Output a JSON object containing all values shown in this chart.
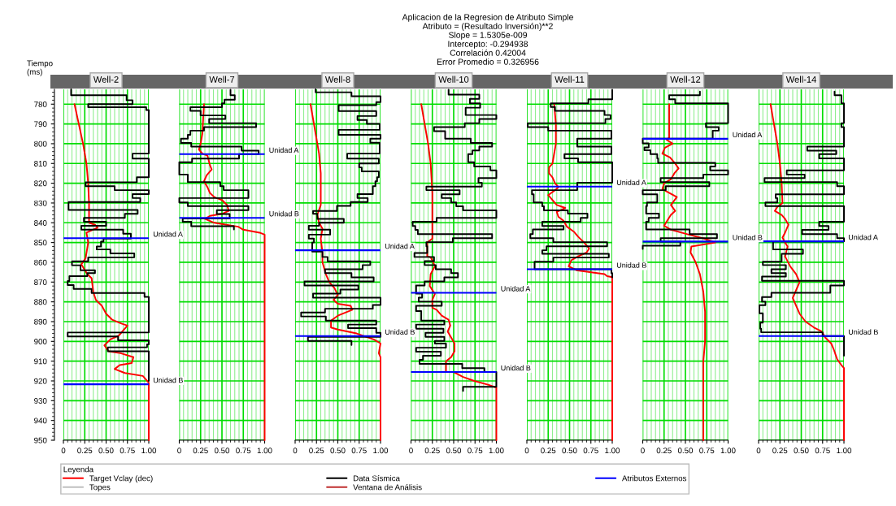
{
  "chart_data": [
    {
      "type": "line",
      "title": "Well-2",
      "ylabel": "Tiempo\n(ms)",
      "legend": "bottom",
      "legend_title": "Leyenda",
      "annotations": [
        "Aplicacion de la Regresion de Atributo Simple",
        "Atributo = (Resultado Inversión)**2",
        "Slope = 1.5305e-009",
        "Intercepto: -0.294938",
        "Correlación 0.42004",
        "Error Promedio = 0.326956"
      ],
      "xlim": [
        0,
        1
      ],
      "xticks": [
        0,
        {
          "value": 0.05,
          "label": null
        },
        {
          "value": 0.1,
          "label": null
        },
        {
          "value": 0.15,
          "label": null
        },
        {
          "value": 0.2,
          "label": null
        },
        0.25,
        {
          "value": 0.3,
          "label": null
        },
        {
          "value": 0.35,
          "label": null
        },
        {
          "value": 0.4,
          "label": null
        },
        {
          "value": 0.45,
          "label": null
        },
        {
          "value": 0.5,
          "label": "0.50"
        },
        {
          "value": 0.55,
          "label": null
        },
        {
          "value": 0.6,
          "label": null
        },
        {
          "value": 0.65,
          "label": null
        },
        {
          "value": 0.7,
          "label": null
        },
        0.75,
        {
          "value": 0.8,
          "label": null
        },
        {
          "value": 0.85,
          "label": null
        },
        {
          "value": 0.9,
          "label": null
        },
        {
          "value": 0.95,
          "label": null
        },
        {
          "value": 1,
          "label": "1.00"
        }
      ],
      "ylim": [
        950,
        772.5
      ],
      "yticks": [
        780,
        790,
        800,
        810,
        820,
        830,
        840,
        850,
        860,
        870,
        880,
        890,
        900,
        910,
        920,
        930,
        940,
        950
      ],
      "grid": true,
      "series": [
        {
          "name": "Target Vclay (dec)",
          "type": "line",
          "color": "#ff0000",
          "x": [
            0.13,
            0.18,
            0.23,
            0.27,
            0.29,
            0.3,
            0.3,
            0.37,
            0.4,
            0.27,
            0.29,
            0.26,
            0.21,
            0.28,
            0.33,
            0.35,
            0.38,
            0.45,
            0.5,
            0.57,
            0.68,
            0.75,
            0.65,
            0.55,
            0.48,
            0.53,
            0.67,
            0.82,
            0.8,
            0.66,
            0.6,
            0.72,
            0.93,
            0.98,
            1.0,
            1.0
          ],
          "values": [
            780,
            790,
            800,
            810,
            820,
            830,
            840,
            841,
            842.5,
            845,
            850,
            858,
            861,
            866,
            868,
            875,
            879,
            882,
            886,
            889,
            891,
            892,
            897,
            899,
            902,
            905,
            906,
            908,
            911,
            912,
            914,
            916,
            917.5,
            920,
            921,
            950
          ]
        },
        {
          "name": "Topes",
          "type": "line",
          "color": "#c0c0c0"
        },
        {
          "name": "Data Sísmica",
          "type": "step",
          "color": "#000000",
          "x": [
            0.09,
            0.74,
            0.81,
            0.29,
            0.97,
            1.0,
            0.81,
            1.0,
            0.86,
            0.26,
            0.6,
            1.0,
            0.81,
            0.9,
            0.06,
            0.87,
            0.72,
            0.24,
            0.5,
            0.21,
            0.7,
            0.79,
            0.47,
            0.44,
            0.39,
            0.55,
            0.83,
            0.29,
            0.1,
            0.2,
            0.37,
            0.28,
            0.07,
            0.05,
            0.12,
            0.33,
            0.95,
            1.0,
            0.05,
            0.64,
            1.0,
            0.98,
            0.52,
            1.0,
            1.0
          ],
          "values": [
            772.5,
            775.5,
            778,
            780,
            781.5,
            783,
            805,
            807.5,
            817,
            819.5,
            821.5,
            823.5,
            825.5,
            827.5,
            829.5,
            833.5,
            835.5,
            837.5,
            839.5,
            841.5,
            843.5,
            845.5,
            848,
            849.5,
            852,
            853.5,
            855.5,
            857.5,
            859.5,
            861.5,
            864,
            865.5,
            867,
            869.5,
            871.5,
            873.5,
            875.5,
            877.5,
            895.5,
            897.5,
            899.5,
            901.5,
            903,
            905,
            920
          ]
        },
        {
          "name": "Ventana de Análisis",
          "type": "line",
          "color": "#c03030"
        },
        {
          "name": "Atributos Externos",
          "type": "line",
          "color": "#0000ff"
        }
      ],
      "ref_lines": [
        {
          "axis": "y",
          "value": 847.8,
          "label": "Unidad A",
          "color": "#0000ff"
        },
        {
          "axis": "y",
          "value": 921.7,
          "label": "Unidad B",
          "color": "#0000ff"
        }
      ]
    },
    {
      "type": "line",
      "title": "Well-7",
      "tick_labels": "x",
      "xlim": [
        0,
        1
      ],
      "xticks": [
        0,
        {
          "value": 0.05,
          "label": null
        },
        {
          "value": 0.1,
          "label": null
        },
        {
          "value": 0.15,
          "label": null
        },
        {
          "value": 0.2,
          "label": null
        },
        0.25,
        {
          "value": 0.3,
          "label": null
        },
        {
          "value": 0.35,
          "label": null
        },
        {
          "value": 0.4,
          "label": null
        },
        {
          "value": 0.45,
          "label": null
        },
        {
          "value": 0.5,
          "label": "0.50"
        },
        {
          "value": 0.55,
          "label": null
        },
        {
          "value": 0.6,
          "label": null
        },
        {
          "value": 0.65,
          "label": null
        },
        {
          "value": 0.7,
          "label": null
        },
        0.75,
        {
          "value": 0.8,
          "label": null
        },
        {
          "value": 0.85,
          "label": null
        },
        {
          "value": 0.9,
          "label": null
        },
        {
          "value": 0.95,
          "label": null
        },
        {
          "value": 1,
          "label": "1.00"
        }
      ],
      "ylim": [
        950,
        772.5
      ],
      "yticks": [
        780,
        790,
        800,
        810,
        820,
        830,
        840,
        850,
        860,
        870,
        880,
        890,
        900,
        910,
        920,
        930,
        940,
        950
      ],
      "grid": true,
      "series": [
        {
          "type": "line",
          "color": "#ff0000",
          "x": [
            0.29,
            0.27,
            0.25,
            0.23,
            0.27,
            0.33,
            0.36,
            0.38,
            0.32,
            0.29,
            0.33,
            0.36,
            0.41,
            0.5,
            0.56,
            0.58,
            0.5,
            0.36,
            0.3,
            0.41,
            0.69,
            0.75,
            0.94,
            1.0,
            1.0
          ],
          "values": [
            780,
            795,
            800,
            803,
            805,
            806,
            811,
            813,
            816,
            819,
            822,
            825,
            827,
            828.5,
            831,
            834,
            835.5,
            836.5,
            838,
            840,
            842,
            843.5,
            845,
            846,
            950
          ]
        },
        {
          "type": "step",
          "color": "#000000",
          "x": [
            0.6,
            0.65,
            0.53,
            0.5,
            0.13,
            0.25,
            0.54,
            0.35,
            0.9,
            0.29,
            0.13,
            0.1,
            0.02,
            0.14,
            0.73,
            0.93,
            0.7,
            0.15,
            0.0,
            0.1,
            0.48,
            0.52,
            0.81,
            0.0,
            0.1,
            0.81,
            0.44,
            0.59,
            0.04,
            0.14,
            0.64,
            0.64
          ],
          "values": [
            772.7,
            775.5,
            777.7,
            779.6,
            781.5,
            783.4,
            785.7,
            787.5,
            789.6,
            791.6,
            793.4,
            795.5,
            797.5,
            799.6,
            801.5,
            803.5,
            805.3,
            807.5,
            809.4,
            815.6,
            819.4,
            821.5,
            823.5,
            827.5,
            829.7,
            831.6,
            833.6,
            835.6,
            837.8,
            839.5,
            841.7,
            843.4
          ]
        }
      ],
      "ref_lines": [
        {
          "axis": "y",
          "value": 805.3,
          "label": "Unidad A",
          "color": "#0000ff"
        },
        {
          "axis": "y",
          "value": 837.5,
          "label": "Unidad B",
          "color": "#0000ff"
        }
      ]
    },
    {
      "type": "line",
      "title": "Well-8",
      "tick_labels": "x",
      "xlim": [
        0,
        1
      ],
      "xticks": [
        0,
        {
          "value": 0.05,
          "label": null
        },
        {
          "value": 0.1,
          "label": null
        },
        {
          "value": 0.15,
          "label": null
        },
        {
          "value": 0.2,
          "label": null
        },
        0.25,
        {
          "value": 0.3,
          "label": null
        },
        {
          "value": 0.35,
          "label": null
        },
        {
          "value": 0.4,
          "label": null
        },
        {
          "value": 0.45,
          "label": null
        },
        {
          "value": 0.5,
          "label": "0.50"
        },
        {
          "value": 0.55,
          "label": null
        },
        {
          "value": 0.6,
          "label": null
        },
        {
          "value": 0.65,
          "label": null
        },
        {
          "value": 0.7,
          "label": null
        },
        0.75,
        {
          "value": 0.8,
          "label": null
        },
        {
          "value": 0.85,
          "label": null
        },
        {
          "value": 0.9,
          "label": null
        },
        {
          "value": 0.95,
          "label": null
        },
        {
          "value": 1,
          "label": "1.00"
        }
      ],
      "ylim": [
        950,
        772.5
      ],
      "yticks": [
        780,
        790,
        800,
        810,
        820,
        830,
        840,
        850,
        860,
        870,
        880,
        890,
        900,
        910,
        920,
        930,
        940,
        950
      ],
      "grid": true,
      "series": [
        {
          "type": "line",
          "color": "#ff0000",
          "x": [
            0.18,
            0.28,
            0.3,
            0.3,
            0.26,
            0.28,
            0.32,
            0.3,
            0.32,
            0.32,
            0.36,
            0.4,
            0.46,
            0.5,
            0.45,
            0.5,
            0.65,
            0.67,
            0.5,
            0.42,
            0.42,
            0.5,
            0.72,
            0.92,
            1.0,
            0.98,
            1.0,
            1.0
          ],
          "values": [
            780,
            805,
            815,
            831,
            836,
            840,
            843,
            848,
            855,
            860,
            866,
            870,
            873,
            876.5,
            879,
            881,
            882,
            884,
            887,
            889.5,
            893,
            894,
            896,
            899,
            901,
            906,
            908,
            950
          ]
        },
        {
          "type": "step",
          "color": "#000000",
          "x": [
            0.24,
            0.66,
            1.0,
            0.95,
            0.51,
            0.95,
            0.73,
            0.84,
            0.99,
            0.51,
            1.0,
            0.88,
            0.99,
            0.61,
            0.98,
            0.75,
            0.78,
            0.98,
            0.96,
            0.94,
            0.91,
            0.73,
            0.85,
            0.65,
            0.49,
            0.21,
            0.26,
            0.57,
            0.28,
            0.16,
            0.41,
            0.16,
            0.22,
            0.2,
            0.32,
            0.38,
            0.88,
            0.79,
            0.35,
            0.66,
            0.92,
            0.11,
            0.74,
            0.53,
            0.21,
            1.0,
            0.91,
            0.35,
            0.07,
            0.36,
            0.95,
            0.62,
            0.95,
            1.0,
            0.15,
            0.66,
            0.66
          ],
          "values": [
            772.5,
            774,
            776,
            779,
            780.5,
            783.5,
            786,
            788,
            790,
            793,
            795.5,
            797.5,
            799.5,
            805,
            807.5,
            810,
            812,
            814,
            817,
            819,
            821.5,
            825.5,
            827.5,
            829.5,
            831.5,
            834,
            835.5,
            838,
            840,
            841.5,
            843.5,
            846,
            848,
            850,
            854.6,
            857.3,
            859.5,
            861.4,
            863.5,
            865.5,
            867.6,
            869.7,
            871.7,
            873.8,
            875.8,
            877.9,
            881.6,
            883.5,
            885.4,
            887.4,
            889.5,
            891.5,
            893.3,
            895.7,
            897.7,
            899.8,
            901.8
          ]
        }
      ],
      "ref_lines": [
        {
          "axis": "y",
          "value": 853.9,
          "label": "Unidad A",
          "color": "#0000ff"
        },
        {
          "axis": "y",
          "value": 897.3,
          "label": "Unidad B",
          "color": "#0000ff"
        }
      ]
    },
    {
      "type": "line",
      "title": "Well-10",
      "tick_labels": "x",
      "xlim": [
        0,
        1
      ],
      "xticks": [
        0,
        {
          "value": 0.05,
          "label": null
        },
        {
          "value": 0.1,
          "label": null
        },
        {
          "value": 0.15,
          "label": null
        },
        {
          "value": 0.2,
          "label": null
        },
        0.25,
        {
          "value": 0.3,
          "label": null
        },
        {
          "value": 0.35,
          "label": null
        },
        {
          "value": 0.4,
          "label": null
        },
        {
          "value": 0.45,
          "label": null
        },
        {
          "value": 0.5,
          "label": "0.50"
        },
        {
          "value": 0.55,
          "label": null
        },
        {
          "value": 0.6,
          "label": null
        },
        {
          "value": 0.65,
          "label": null
        },
        {
          "value": 0.7,
          "label": null
        },
        0.75,
        {
          "value": 0.8,
          "label": null
        },
        {
          "value": 0.85,
          "label": null
        },
        {
          "value": 0.9,
          "label": null
        },
        {
          "value": 0.95,
          "label": null
        },
        {
          "value": 1,
          "label": "1.00"
        }
      ],
      "ylim": [
        950,
        772.5
      ],
      "yticks": [
        780,
        790,
        800,
        810,
        820,
        830,
        840,
        850,
        860,
        870,
        880,
        890,
        900,
        910,
        920,
        930,
        940,
        950
      ],
      "grid": true,
      "series": [
        {
          "type": "line",
          "color": "#ff0000",
          "x": [
            0.12,
            0.2,
            0.23,
            0.25,
            0.25,
            0.19,
            0.19,
            0.23,
            0.25,
            0.28,
            0.23,
            0.22,
            0.28,
            0.25,
            0.25,
            0.3,
            0.36,
            0.44,
            0.46,
            0.43,
            0.47,
            0.51,
            0.51,
            0.47,
            0.41,
            0.41,
            0.5,
            0.61,
            0.74,
            0.91,
            1.0,
            1.0
          ],
          "values": [
            780,
            800,
            810,
            825,
            848,
            850,
            857,
            857.5,
            859,
            862,
            866,
            872,
            876,
            879,
            883,
            884,
            887,
            889,
            892,
            895,
            898,
            901,
            905,
            908,
            910,
            915.5,
            915.5,
            918,
            920,
            922,
            923.4,
            950
          ]
        },
        {
          "type": "step",
          "color": "#000000",
          "x": [
            0.44,
            0.8,
            0.69,
            0.81,
            0.64,
            1.0,
            0.8,
            0.63,
            0.27,
            0.4,
            0.7,
            0.95,
            0.8,
            0.72,
            0.67,
            0.74,
            0.93,
            1.0,
            0.79,
            0.83,
            0.18,
            0.57,
            0.36,
            0.47,
            0.53,
            0.61,
            1.0,
            0.3,
            0.02,
            0.05,
            0.08,
            0.95,
            0.49,
            0.18,
            0.19,
            0.04,
            0.27,
            0.16,
            0.29,
            0.47,
            0.55,
            0.39,
            0.16,
            0.06,
            0.13,
            0.09,
            0.36,
            0.06,
            0.12,
            0.39,
            0.06,
            0.38,
            0.17,
            0.39,
            0.28,
            0.41,
            0.06,
            0.35,
            0.14,
            0.1,
            0.6,
            0.86,
            1.0,
            0.61,
            0.61
          ],
          "values": [
            772.7,
            775.2,
            777.3,
            779.6,
            781.8,
            785.5,
            787.5,
            789.6,
            791.6,
            793.7,
            797.5,
            799.6,
            801.5,
            803.4,
            805.3,
            809.4,
            811.5,
            813.5,
            817.4,
            819.7,
            821.7,
            823.5,
            825.6,
            827.5,
            829.7,
            831.7,
            833.7,
            837.5,
            839.5,
            841.6,
            843.6,
            845.7,
            847.8,
            849.8,
            851.9,
            855.3,
            857.3,
            859.4,
            861.4,
            863.5,
            865.5,
            867.6,
            869.7,
            871.7,
            875.8,
            877.9,
            879.9,
            882.0,
            884.7,
            889.5,
            891.5,
            893.6,
            895.7,
            897.7,
            899.8,
            901.1,
            903.2,
            905.2,
            907.3,
            909.3,
            911.4,
            913.5,
            915.5,
            923.0,
            925.1
          ]
        }
      ],
      "ref_lines": [
        {
          "axis": "y",
          "value": 875.4,
          "label": "Unidad A",
          "color": "#0000ff"
        },
        {
          "axis": "y",
          "value": 915.5,
          "label": "Unidad B",
          "color": "#0000ff"
        }
      ]
    },
    {
      "type": "line",
      "title": "Well-11",
      "tick_labels": "x",
      "xlim": [
        0,
        1
      ],
      "xticks": [
        0,
        {
          "value": 0.05,
          "label": null
        },
        {
          "value": 0.1,
          "label": null
        },
        {
          "value": 0.15,
          "label": null
        },
        {
          "value": 0.2,
          "label": null
        },
        0.25,
        {
          "value": 0.3,
          "label": null
        },
        {
          "value": 0.35,
          "label": null
        },
        {
          "value": 0.4,
          "label": null
        },
        {
          "value": 0.45,
          "label": null
        },
        {
          "value": 0.5,
          "label": "0.50"
        },
        {
          "value": 0.55,
          "label": null
        },
        {
          "value": 0.6,
          "label": null
        },
        {
          "value": 0.65,
          "label": null
        },
        {
          "value": 0.7,
          "label": null
        },
        0.75,
        {
          "value": 0.8,
          "label": null
        },
        {
          "value": 0.85,
          "label": null
        },
        {
          "value": 0.9,
          "label": null
        },
        {
          "value": 0.95,
          "label": null
        },
        {
          "value": 1,
          "label": "1.00"
        }
      ],
      "ylim": [
        950,
        772.5
      ],
      "yticks": [
        780,
        790,
        800,
        810,
        820,
        830,
        840,
        850,
        860,
        870,
        880,
        890,
        900,
        910,
        920,
        930,
        940,
        950
      ],
      "grid": true,
      "series": [
        {
          "type": "line",
          "color": "#ff0000",
          "x": [
            0.32,
            0.34,
            0.34,
            0.3,
            0.26,
            0.26,
            0.3,
            0.33,
            0.37,
            0.33,
            0.25,
            0.27,
            0.35,
            0.45,
            0.35,
            0.37,
            0.43,
            0.47,
            0.55,
            0.6,
            0.67,
            0.73,
            0.7,
            0.6,
            0.52,
            0.49,
            0.58,
            0.91,
            0.94,
            1.0,
            1.0
          ],
          "values": [
            780,
            790,
            800,
            810,
            812,
            815,
            817,
            820,
            822,
            823.5,
            826,
            827,
            831,
            832.5,
            834.5,
            837,
            839,
            842,
            844.5,
            847,
            850,
            853,
            855,
            857,
            859,
            862,
            864,
            866,
            867,
            867.5,
            950
          ]
        },
        {
          "type": "step",
          "color": "#000000",
          "x": [
            1.0,
            0.72,
            0.28,
            0.33,
            0.91,
            0.98,
            0.92,
            0.01,
            0.25,
            0.99,
            0.59,
            0.99,
            0.44,
            0.6,
            1.0,
            0.59,
            0.06,
            0.08,
            0.18,
            0.2,
            0.48,
            0.71,
            0.63,
            0.18,
            0.43,
            0.07,
            0.04,
            0.31,
            0.94,
            0.23,
            0.18,
            0.96,
            0.31,
            0.09,
            0.99,
            1.0,
            1.0
          ],
          "values": [
            772.7,
            777.5,
            779.6,
            781.4,
            783.4,
            785.5,
            787.5,
            789.6,
            791.6,
            793.4,
            797.5,
            801.5,
            805.3,
            807.4,
            809.4,
            819.7,
            823.5,
            825.6,
            829.7,
            831.7,
            833.7,
            835.4,
            837.5,
            839.5,
            841.6,
            843.4,
            845.7,
            847.8,
            849.8,
            851.9,
            853.9,
            855.7,
            857.6,
            859.7,
            863.5,
            865.5,
            867.6
          ]
        }
      ],
      "ref_lines": [
        {
          "axis": "y",
          "value": 821.7,
          "label": "Unidad A",
          "color": "#0000ff"
        },
        {
          "axis": "y",
          "value": 863.5,
          "label": "Unidad B",
          "color": "#0000ff"
        }
      ]
    },
    {
      "type": "line",
      "title": "Well-12",
      "tick_labels": "x",
      "xlim": [
        0,
        1
      ],
      "xticks": [
        0,
        {
          "value": 0.05,
          "label": null
        },
        {
          "value": 0.1,
          "label": null
        },
        {
          "value": 0.15,
          "label": null
        },
        {
          "value": 0.2,
          "label": null
        },
        0.25,
        {
          "value": 0.3,
          "label": null
        },
        {
          "value": 0.35,
          "label": null
        },
        {
          "value": 0.4,
          "label": null
        },
        {
          "value": 0.45,
          "label": null
        },
        {
          "value": 0.5,
          "label": "0.50"
        },
        {
          "value": 0.55,
          "label": null
        },
        {
          "value": 0.6,
          "label": null
        },
        {
          "value": 0.65,
          "label": null
        },
        {
          "value": 0.7,
          "label": null
        },
        0.75,
        {
          "value": 0.8,
          "label": null
        },
        {
          "value": 0.85,
          "label": null
        },
        {
          "value": 0.9,
          "label": null
        },
        {
          "value": 0.95,
          "label": null
        },
        {
          "value": 1,
          "label": "1.00"
        }
      ],
      "ylim": [
        950,
        772.5
      ],
      "yticks": [
        780,
        790,
        800,
        810,
        820,
        830,
        840,
        850,
        860,
        870,
        880,
        890,
        900,
        910,
        920,
        930,
        940,
        950
      ],
      "grid": true,
      "series": [
        {
          "type": "line",
          "color": "#ff0000",
          "x": [
            0.31,
            0.31,
            0.28,
            0.35,
            0.26,
            0.23,
            0.32,
            0.38,
            0.42,
            0.37,
            0.33,
            0.25,
            0.23,
            0.4,
            0.33,
            0.38,
            0.33,
            0.3,
            0.25,
            0.33,
            0.54,
            0.72,
            0.85,
            0.57,
            0.56,
            0.62,
            0.67,
            0.71,
            0.73,
            0.73,
            0.71,
            0.71
          ],
          "values": [
            780,
            797,
            798,
            800,
            802,
            805,
            807,
            810,
            812.5,
            815,
            818,
            820,
            823,
            827,
            831,
            834,
            836,
            838,
            841.5,
            843.5,
            846,
            848,
            850,
            852,
            855,
            860,
            866,
            875,
            885,
            900,
            910,
            950
          ]
        },
        {
          "type": "step",
          "color": "#000000",
          "x": [
            0.67,
            0.31,
            0.38,
            1.0,
            0.74,
            0.89,
            0.82,
            0.0,
            0.07,
            0.02,
            0.09,
            0.17,
            0.18,
            0.85,
            0.79,
            1.0,
            0.71,
            0.21,
            0.78,
            0.27,
            0.0,
            0.17,
            0.05,
            0.04,
            0.19,
            0.07,
            0.04,
            0.55,
            0.87,
            0.21,
            0.44,
            0.0,
            0.0
          ],
          "values": [
            773.6,
            775.5,
            777.5,
            779.6,
            789.6,
            791.6,
            793.4,
            797.5,
            799.8,
            801.9,
            803.3,
            805.3,
            807.4,
            809.7,
            811.5,
            813.5,
            815.6,
            817.4,
            819.4,
            821.5,
            823.5,
            825.6,
            829.7,
            831.6,
            835.4,
            837.5,
            839.5,
            843.4,
            845.7,
            847.8,
            849.5,
            851.6,
            853.2
          ]
        }
      ],
      "ref_lines": [
        {
          "axis": "y",
          "value": 797.5,
          "label": "Unidad A",
          "color": "#0000ff"
        },
        {
          "axis": "y",
          "value": 849.5,
          "label": "Unidad B",
          "color": "#0000ff"
        }
      ]
    },
    {
      "type": "line",
      "title": "Well-14",
      "tick_labels": "x",
      "xlim": [
        0,
        1
      ],
      "xticks": [
        0,
        {
          "value": 0.05,
          "label": null
        },
        {
          "value": 0.1,
          "label": null
        },
        {
          "value": 0.15,
          "label": null
        },
        {
          "value": 0.2,
          "label": null
        },
        0.25,
        {
          "value": 0.3,
          "label": null
        },
        {
          "value": 0.35,
          "label": null
        },
        {
          "value": 0.4,
          "label": null
        },
        {
          "value": 0.45,
          "label": null
        },
        {
          "value": 0.5,
          "label": "0.50"
        },
        {
          "value": 0.55,
          "label": null
        },
        {
          "value": 0.6,
          "label": null
        },
        {
          "value": 0.65,
          "label": null
        },
        {
          "value": 0.7,
          "label": null
        },
        0.75,
        {
          "value": 0.8,
          "label": null
        },
        {
          "value": 0.85,
          "label": null
        },
        {
          "value": 0.9,
          "label": null
        },
        {
          "value": 0.95,
          "label": null
        },
        {
          "value": 1,
          "label": "1.00"
        }
      ],
      "ylim": [
        950,
        772.5
      ],
      "yticks": [
        780,
        790,
        800,
        810,
        820,
        830,
        840,
        850,
        860,
        870,
        880,
        890,
        900,
        910,
        920,
        930,
        940,
        950
      ],
      "grid": true,
      "series": [
        {
          "type": "line",
          "color": "#ff0000",
          "x": [
            0.14,
            0.18,
            0.22,
            0.25,
            0.27,
            0.28,
            0.22,
            0.19,
            0.27,
            0.31,
            0.35,
            0.31,
            0.28,
            0.31,
            0.34,
            0.31,
            0.37,
            0.44,
            0.48,
            0.44,
            0.4,
            0.45,
            0.48,
            0.55,
            0.65,
            0.74,
            0.78,
            0.85,
            0.88,
            0.92,
            0.97,
            1.0,
            1.0
          ],
          "values": [
            780,
            790,
            800,
            810,
            820,
            830,
            832,
            834,
            836,
            838,
            841,
            845,
            847.5,
            850,
            852,
            857,
            862,
            866,
            870,
            874,
            878,
            883,
            886,
            890,
            893,
            895,
            898,
            901,
            904,
            909,
            912,
            913.5,
            950
          ]
        },
        {
          "type": "step",
          "color": "#000000",
          "x": [
            0.89,
            0.97,
            1.0,
            0.97,
            1.0,
            0.57,
            0.91,
            0.71,
            1.0,
            0.33,
            0.54,
            0.07,
            0.92,
            1.0,
            0.2,
            0.22,
            0.08,
            1.0,
            0.71,
            0.82,
            0.51,
            0.92,
            1.0,
            0.17,
            0.52,
            0.27,
            0.05,
            0.32,
            0.15,
            0.32,
            0.04,
            1.0,
            0.84,
            0.15,
            0.04,
            0.08,
            0.01,
            0.05,
            0.02,
            0.03,
            0.75,
            1.0,
            1.0
          ],
          "values": [
            773.6,
            775.5,
            779.6,
            789.6,
            791.6,
            801.5,
            803.5,
            805.3,
            807.4,
            813.5,
            815.6,
            817.4,
            819.4,
            821.5,
            825.6,
            827.5,
            829.7,
            831.6,
            839.5,
            841.6,
            843.6,
            845.7,
            847.8,
            849.4,
            853.5,
            855.7,
            859.7,
            861.4,
            863.5,
            865.5,
            867.2,
            869.4,
            871.7,
            875.4,
            877.6,
            879.9,
            881.7,
            885.8,
            890.5,
            893.6,
            895.4,
            897.3,
            907.3
          ]
        }
      ],
      "ref_lines": [
        {
          "axis": "y",
          "value": 849.4,
          "label": "Unidad A",
          "color": "#0000ff"
        },
        {
          "axis": "y",
          "value": 897.3,
          "label": "Unidad B",
          "color": "#0000ff"
        }
      ]
    }
  ]
}
